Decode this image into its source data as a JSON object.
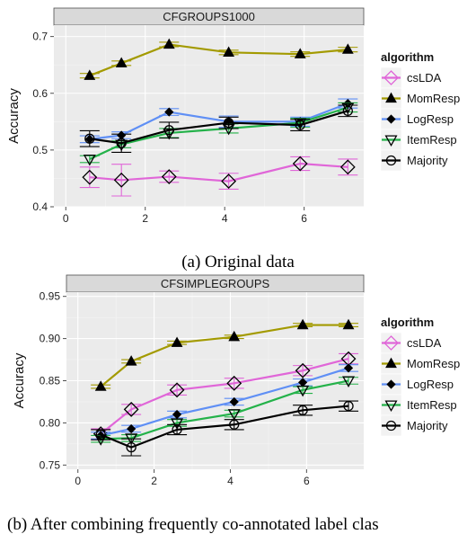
{
  "chart_data": [
    {
      "type": "line",
      "title": "CFGROUPS1000",
      "xlabel": "",
      "ylabel": "Accuracy",
      "caption": "(a) Original data",
      "xlim": [
        -0.3,
        7.5
      ],
      "ylim": [
        0.4,
        0.72
      ],
      "xticks": [
        0,
        2,
        4,
        6
      ],
      "yticks": [
        0.4,
        0.5,
        0.6,
        0.7
      ],
      "ytick_labels": [
        "0.4",
        "0.5",
        "0.6",
        "0.7"
      ],
      "x": [
        0.6,
        1.4,
        2.6,
        4.1,
        5.9,
        7.1
      ],
      "legend_title": "algorithm",
      "legend_position": "right",
      "series": [
        {
          "name": "csLDA",
          "color": "#e066d8",
          "marker": "diamond",
          "y": [
            0.452,
            0.447,
            0.453,
            0.445,
            0.476,
            0.47
          ],
          "err": [
            0.018,
            0.028,
            0.01,
            0.014,
            0.012,
            0.014
          ]
        },
        {
          "name": "MomResp",
          "color": "#a39a00",
          "marker": "triangle-up",
          "y": [
            0.631,
            0.653,
            0.686,
            0.672,
            0.669,
            0.677
          ],
          "err": [
            0.004,
            0.004,
            0.004,
            0.004,
            0.004,
            0.004
          ]
        },
        {
          "name": "LogResp",
          "color": "#5f8ff5",
          "marker": "diamond-small",
          "y": [
            0.519,
            0.526,
            0.567,
            0.55,
            0.55,
            0.582
          ],
          "err": [
            0.006,
            0.006,
            0.006,
            0.01,
            0.008,
            0.008
          ]
        },
        {
          "name": "ItemResp",
          "color": "#24b24a",
          "marker": "triangle-down",
          "y": [
            0.484,
            0.51,
            0.53,
            0.538,
            0.548,
            0.575
          ],
          "err": [
            0.006,
            0.006,
            0.008,
            0.008,
            0.008,
            0.008
          ]
        },
        {
          "name": "Majority",
          "color": "#000000",
          "marker": "circle",
          "y": [
            0.52,
            0.512,
            0.535,
            0.548,
            0.544,
            0.569
          ],
          "err": [
            0.014,
            0.016,
            0.014,
            0.01,
            0.01,
            0.01
          ]
        }
      ]
    },
    {
      "type": "line",
      "title": "CFSIMPLEGROUPS",
      "xlabel": "",
      "ylabel": "Accuracy",
      "caption": "(b) After combining frequently co-annotated label clas",
      "xlim": [
        -0.3,
        7.5
      ],
      "ylim": [
        0.745,
        0.955
      ],
      "xticks": [
        0,
        2,
        4,
        6
      ],
      "yticks": [
        0.75,
        0.8,
        0.85,
        0.9,
        0.95
      ],
      "ytick_labels": [
        "0.75",
        "0.80",
        "0.85",
        "0.90",
        "0.95"
      ],
      "x": [
        0.6,
        1.4,
        2.6,
        4.1,
        5.9,
        7.1
      ],
      "legend_title": "algorithm",
      "legend_position": "right",
      "series": [
        {
          "name": "csLDA",
          "color": "#e066d8",
          "marker": "diamond",
          "y": [
            0.787,
            0.816,
            0.839,
            0.847,
            0.862,
            0.876
          ],
          "err": [
            0.006,
            0.006,
            0.006,
            0.006,
            0.006,
            0.006
          ]
        },
        {
          "name": "MomResp",
          "color": "#a39a00",
          "marker": "triangle-up",
          "y": [
            0.843,
            0.873,
            0.895,
            0.902,
            0.916,
            0.916
          ],
          "err": [
            0.002,
            0.002,
            0.002,
            0.002,
            0.002,
            0.002
          ]
        },
        {
          "name": "LogResp",
          "color": "#5f8ff5",
          "marker": "diamond-small",
          "y": [
            0.785,
            0.793,
            0.81,
            0.825,
            0.848,
            0.865
          ],
          "err": [
            0.004,
            0.004,
            0.004,
            0.004,
            0.004,
            0.004
          ]
        },
        {
          "name": "ItemResp",
          "color": "#24b24a",
          "marker": "triangle-down",
          "y": [
            0.781,
            0.782,
            0.8,
            0.811,
            0.839,
            0.85
          ],
          "err": [
            0.004,
            0.004,
            0.004,
            0.004,
            0.004,
            0.004
          ]
        },
        {
          "name": "Majority",
          "color": "#000000",
          "marker": "circle",
          "y": [
            0.786,
            0.771,
            0.792,
            0.798,
            0.815,
            0.82
          ],
          "err": [
            0.006,
            0.01,
            0.006,
            0.006,
            0.006,
            0.006
          ]
        }
      ]
    }
  ]
}
